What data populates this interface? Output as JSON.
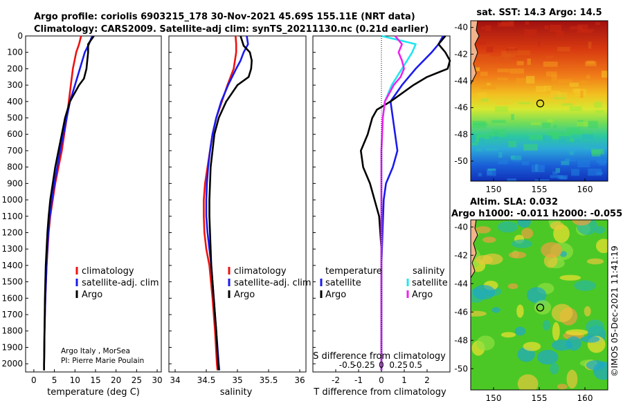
{
  "header": {
    "line1": "Argo profile: coriolis 6903215_178 30-Nov-2021 45.69S 155.11E (NRT data)",
    "line2": "Climatology: CARS2009. Satellite-adj clim: synTS_20211130.nc (0.21d earlier)"
  },
  "colors": {
    "climatology": "#ee1111",
    "satellite": "#1a1aee",
    "argo": "#000000",
    "satellite_s": "#22e6ee",
    "argo_s": "#ee22ee"
  },
  "chart_data": [
    {
      "type": "line",
      "name": "temperature-profile",
      "xlabel": "temperature (deg C)",
      "ylabel": "",
      "xlim": [
        -2,
        31
      ],
      "ylim": [
        2050,
        0
      ],
      "xticks": [
        0,
        5,
        10,
        15,
        20,
        25,
        30
      ],
      "yticks": [
        0,
        100,
        200,
        300,
        400,
        500,
        600,
        700,
        800,
        900,
        1000,
        1100,
        1200,
        1300,
        1400,
        1500,
        1600,
        1700,
        1800,
        1900,
        2000
      ],
      "legend": [
        "climatology",
        "satellite-adj. clim",
        "Argo"
      ],
      "annotation": [
        "Argo Italy , MorSea",
        "PI: Pierre Marie Poulain"
      ],
      "series": [
        {
          "name": "climatology",
          "depth": [
            0,
            50,
            100,
            200,
            300,
            400,
            500,
            600,
            700,
            800,
            900,
            1000,
            1100,
            1200,
            1400,
            1600,
            1800,
            2000,
            2040
          ],
          "values": [
            11.5,
            11.0,
            10.3,
            9.5,
            9.0,
            8.5,
            8.0,
            7.4,
            6.8,
            6.0,
            5.2,
            4.6,
            4.0,
            3.6,
            3.1,
            2.8,
            2.6,
            2.5,
            2.5
          ]
        },
        {
          "name": "satellite-adj. clim",
          "depth": [
            0,
            50,
            100,
            200,
            300,
            400,
            500,
            600,
            700,
            800,
            900,
            1000,
            1100,
            1200,
            1400,
            1600,
            1800,
            2000,
            2040
          ],
          "values": [
            14.2,
            13.4,
            12.4,
            11.2,
            10.0,
            8.8,
            8.0,
            7.2,
            6.4,
            5.7,
            5.0,
            4.4,
            3.9,
            3.5,
            3.1,
            2.8,
            2.6,
            2.5,
            2.5
          ]
        },
        {
          "name": "Argo",
          "depth": [
            0,
            50,
            100,
            200,
            260,
            300,
            400,
            500,
            600,
            700,
            800,
            900,
            1000,
            1100,
            1200,
            1400,
            1600,
            1800,
            2000,
            2040
          ],
          "values": [
            14.6,
            13.2,
            13.2,
            12.8,
            12.2,
            11.0,
            8.8,
            7.6,
            6.8,
            6.0,
            5.2,
            4.6,
            4.0,
            3.6,
            3.3,
            2.9,
            2.7,
            2.6,
            2.5,
            2.5
          ]
        }
      ]
    },
    {
      "type": "line",
      "name": "salinity-profile",
      "xlabel": "salinity",
      "ylabel": "",
      "xlim": [
        33.9,
        36.1
      ],
      "ylim": [
        2050,
        0
      ],
      "xticks": [
        34,
        34.5,
        35,
        35.5,
        36
      ],
      "xticklabels": [
        "34",
        "34.5",
        "35",
        "35.5",
        "36"
      ],
      "legend": [
        "climatology",
        "satellite-adj. clim",
        "Argo"
      ],
      "series": [
        {
          "name": "climatology",
          "depth": [
            0,
            50,
            100,
            200,
            300,
            400,
            500,
            600,
            700,
            800,
            900,
            1000,
            1100,
            1200,
            1300,
            1400,
            1600,
            1800,
            2000,
            2040
          ],
          "values": [
            34.97,
            34.98,
            34.98,
            34.94,
            34.84,
            34.75,
            34.66,
            34.6,
            34.56,
            34.52,
            34.48,
            34.46,
            34.46,
            34.47,
            34.5,
            34.55,
            34.6,
            34.64,
            34.67,
            34.68
          ]
        },
        {
          "name": "satellite-adj. clim",
          "depth": [
            0,
            50,
            100,
            150,
            200,
            300,
            400,
            500,
            600,
            700,
            800,
            900,
            1000,
            1100,
            1200,
            1300,
            1400,
            1600,
            1800,
            2000,
            2040
          ],
          "values": [
            35.15,
            35.17,
            35.1,
            35.05,
            34.98,
            34.85,
            34.74,
            34.66,
            34.6,
            34.56,
            34.53,
            34.51,
            34.5,
            34.5,
            34.52,
            34.55,
            34.58,
            34.62,
            34.66,
            34.7,
            34.71
          ]
        },
        {
          "name": "Argo",
          "depth": [
            0,
            60,
            100,
            150,
            200,
            250,
            300,
            400,
            500,
            600,
            700,
            800,
            900,
            1000,
            1100,
            1200,
            1300,
            1400,
            1600,
            1800,
            2000,
            2040
          ],
          "values": [
            35.05,
            35.1,
            35.2,
            35.23,
            35.22,
            35.18,
            35.0,
            34.82,
            34.7,
            34.63,
            34.6,
            34.57,
            34.56,
            34.55,
            34.55,
            34.56,
            34.57,
            34.58,
            34.62,
            34.66,
            34.69,
            34.7
          ]
        }
      ]
    },
    {
      "type": "line",
      "name": "difference-profile",
      "xlabel": "T difference from climatology",
      "xlabel_top": "S difference from climatology",
      "xlim": [
        -3,
        3
      ],
      "ylim": [
        2050,
        0
      ],
      "xticks": [
        -2,
        -1,
        0,
        1,
        2
      ],
      "top_xticks": [
        -0.5,
        -0.25,
        0,
        0.25,
        0.5
      ],
      "top_xticklabels": [
        "-0.5",
        "-0.25",
        "0",
        "0.25",
        "0.5"
      ],
      "legend_temperature_title": "temperature",
      "legend_salinity_title": "salinity",
      "legend": [
        "satellite",
        "Argo",
        "satellite",
        "Argo"
      ],
      "series": [
        {
          "name": "T satellite",
          "depth": [
            0,
            50,
            100,
            200,
            300,
            400,
            500,
            600,
            700,
            800,
            900,
            1000,
            1200,
            1400,
            1600,
            1800,
            2000,
            2040
          ],
          "values": [
            2.7,
            2.5,
            2.2,
            1.5,
            0.9,
            0.4,
            0.5,
            0.6,
            0.7,
            0.5,
            0.2,
            0.1,
            0.05,
            0.0,
            0.0,
            0.0,
            0.0,
            0.0
          ]
        },
        {
          "name": "T Argo",
          "depth": [
            0,
            50,
            100,
            150,
            200,
            250,
            300,
            400,
            450,
            500,
            600,
            700,
            800,
            900,
            1000,
            1100,
            1200,
            1300,
            1400,
            1600,
            1800,
            2000,
            2040
          ],
          "values": [
            2.8,
            2.5,
            2.8,
            3.0,
            2.9,
            2.0,
            1.4,
            0.4,
            -0.2,
            -0.4,
            -0.6,
            -0.9,
            -0.8,
            -0.5,
            -0.3,
            -0.1,
            -0.05,
            0.0,
            0.0,
            0.0,
            0.0,
            0.0,
            0.0
          ]
        },
        {
          "name": "S satellite",
          "depth": [
            0,
            20,
            50,
            100,
            200,
            300,
            400,
            500,
            700,
            900,
            1100,
            1400,
            1700,
            2000,
            2040
          ],
          "values": [
            0.0,
            0.2,
            0.5,
            0.45,
            0.3,
            0.15,
            0.05,
            0.02,
            0.0,
            0.0,
            0.0,
            0.0,
            0.0,
            0.0,
            0.0
          ]
        },
        {
          "name": "S Argo",
          "depth": [
            0,
            50,
            100,
            150,
            200,
            250,
            300,
            400,
            500,
            700,
            900,
            1100,
            1400,
            1700,
            2000,
            2040
          ],
          "values": [
            0.2,
            0.3,
            0.25,
            0.3,
            0.33,
            0.28,
            0.18,
            0.05,
            0.02,
            0.0,
            0.0,
            0.0,
            0.0,
            0.0,
            0.0,
            0.0
          ]
        }
      ]
    },
    {
      "type": "heatmap",
      "name": "sst-map",
      "title": "sat. SST: 14.3 Argo: 14.5",
      "xlim": [
        147.5,
        162.5
      ],
      "ylim": [
        -51.5,
        -39.5
      ],
      "xticks": [
        150,
        155,
        160
      ],
      "yticks": [
        -40,
        -42,
        -44,
        -46,
        -48,
        -50
      ],
      "argo_position": [
        155.11,
        -45.69
      ]
    },
    {
      "type": "heatmap",
      "name": "sla-map",
      "title_line1": "Altim. SLA: 0.032",
      "title_line2": "Argo h1000: -0.011 h2000: -0.055",
      "xlim": [
        147.5,
        162.5
      ],
      "ylim": [
        -51.5,
        -39.5
      ],
      "xticks": [
        150,
        155,
        160
      ],
      "yticks": [
        -40,
        -42,
        -44,
        -46,
        -48,
        -50
      ],
      "argo_position": [
        155.11,
        -45.69
      ]
    }
  ],
  "footer": {
    "credit": "©IMOS 05-Dec-2021 11:41:19"
  }
}
